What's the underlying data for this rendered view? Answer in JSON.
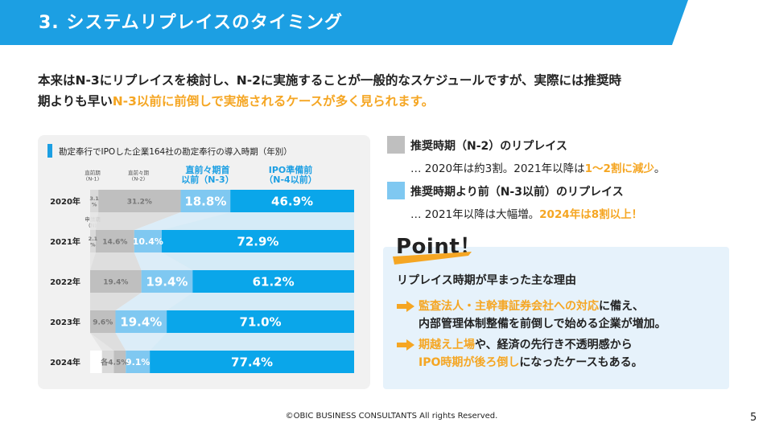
{
  "header": {
    "title": "3.  システムリプレイスのタイミング",
    "bar_color": "#1c9fe3"
  },
  "intro": {
    "line1": "本来はN-3にリプレイスを検討し、N-2に実施することが一般的なスケジュールですが、実際には推奨時",
    "line2_plain": "期よりも早い",
    "line2_highlight": "N-3以前に前倒しで実施されるケースが多く見られます。"
  },
  "chart_data": {
    "type": "bar",
    "orientation": "horizontal-stacked",
    "title": "勘定奉行でIPOした企業164社の勘定奉行の導入時期（年別）",
    "column_headers": {
      "direct_prev": "直前期\n(N-1)",
      "direct_prev_prev": "直前々期\n(N-2)",
      "n3": "直前々期首\n以前（N-3）",
      "n4": "IPO準備前\n（N-4以前）",
      "application": "申請期\n(N)"
    },
    "categories": [
      "2020年",
      "2021年",
      "2022年",
      "2023年",
      "2024年"
    ],
    "series": [
      {
        "name": "申請期(N)",
        "color": "#ffffff",
        "values": [
          null,
          null,
          null,
          null,
          null
        ]
      },
      {
        "name": "直前期(N-1)",
        "color": "#d9d9d9",
        "values": [
          3.1,
          2.1,
          null,
          null,
          4.5
        ]
      },
      {
        "name": "直前々期(N-2)",
        "color": "#bfbfbf",
        "values": [
          31.2,
          14.6,
          19.4,
          9.6,
          4.5
        ]
      },
      {
        "name": "直前々期首以前（N-3）",
        "color": "#7fc8f1",
        "values": [
          18.8,
          10.4,
          19.4,
          19.4,
          9.1
        ]
      },
      {
        "name": "IPO準備前（N-4以前）",
        "color": "#0aa6ea",
        "values": [
          46.9,
          72.9,
          61.2,
          71.0,
          77.4
        ]
      }
    ],
    "value_labels": [
      [
        "3.1\n%",
        "31.2%",
        "18.8%",
        "46.9%"
      ],
      [
        "2.1\n%",
        "14.6%",
        "10.4%",
        "72.9%"
      ],
      [
        "",
        "19.4%",
        "19.4%",
        "61.2%"
      ],
      [
        "",
        "9.6%",
        "19.4%",
        "71.0%"
      ],
      [
        "各4.5%",
        "",
        "9.1%",
        "77.4%"
      ]
    ],
    "xlim": [
      0,
      100
    ]
  },
  "legend": {
    "gray_label": "推奨時期（N-2）のリプレイス",
    "gray_color": "#bfbfbf",
    "gray_note_plain": "… 2020年は約3割。2021年以降は",
    "gray_note_highlight": "1～2割に減少",
    "gray_note_end": "。",
    "blue_label": "推奨時期より前（N-3以前）のリプレイス",
    "blue_color": "#7fc8f1",
    "blue_note_plain": "… 2021年以降は大幅増。",
    "blue_note_highlight": "2024年は8割以上！"
  },
  "point": {
    "title": "Point！",
    "heading": "リプレイス時期が早まった主な理由",
    "bullet1_highlight": "監査法人・主幹事証券会社への対応",
    "bullet1_plain": "に備え、",
    "bullet1_line2": "内部管理体制整備を前倒しで始める企業が増加。",
    "bullet2_highlight": "期越え上場",
    "bullet2_plain": "や、経済の先行き不透明感から",
    "bullet2_line2_highlight": "IPO時期が後ろ倒し",
    "bullet2_line2_plain": "になったケースもある。",
    "accent_color": "#f5a623"
  },
  "footer": {
    "copyright": "©OBIC  BUSINESS  CONSULTANTS    All rights Reserved.",
    "page": "5"
  }
}
